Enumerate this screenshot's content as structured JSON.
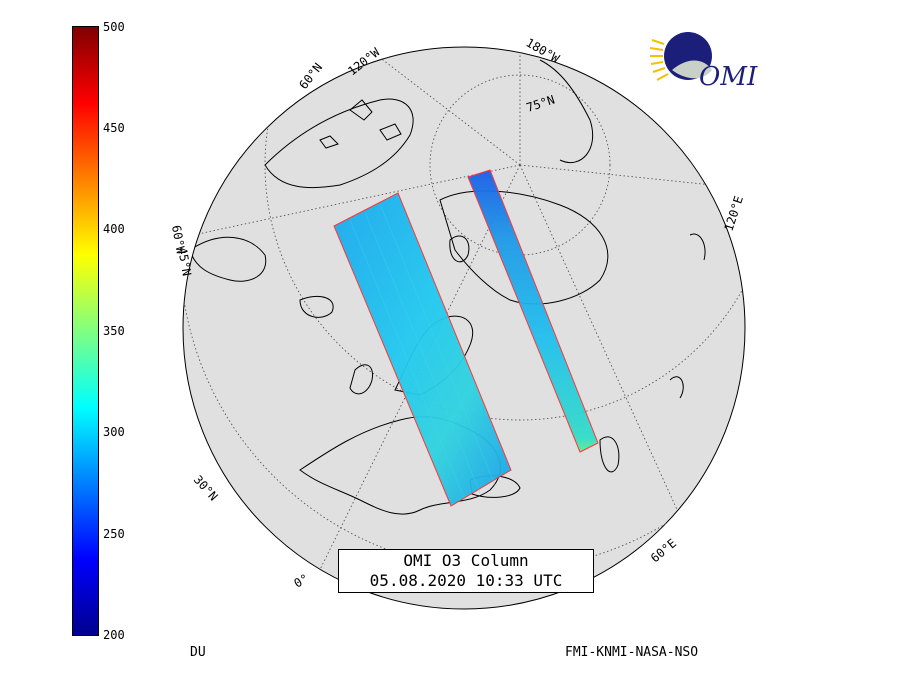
{
  "title": {
    "line1": "OMI O3 Column",
    "line2": "05.08.2020 10:33 UTC"
  },
  "colorbar": {
    "unit": "DU",
    "min": 200,
    "max": 500,
    "ticks": [
      "200",
      "250",
      "300",
      "350",
      "400",
      "450",
      "500"
    ],
    "colormap": "jet"
  },
  "credit": "FMI-KNMI-NASA-NSO",
  "logo": {
    "text": "OMI",
    "icon": "omi-globe-logo-icon",
    "colors": {
      "globe": "#1b1f7a",
      "rays": "#f2c200",
      "crescent": "#c9d0c8"
    }
  },
  "graticule_labels": {
    "lon_120w": "120°W",
    "lon_180w": "180°W",
    "lon_120e": "120°E",
    "lon_60e": "60°E",
    "lon_0": "0°",
    "lon_60w": "60°W",
    "lat_75n": "75°N",
    "lat_60n": "60°N",
    "lat_45n": "45°N",
    "lat_30n": "30°N"
  },
  "map": {
    "projection": "orthographic, north-polar view",
    "globe_fill": "#e0e0e0",
    "ocean_swath_color_typical_DU": 300
  }
}
